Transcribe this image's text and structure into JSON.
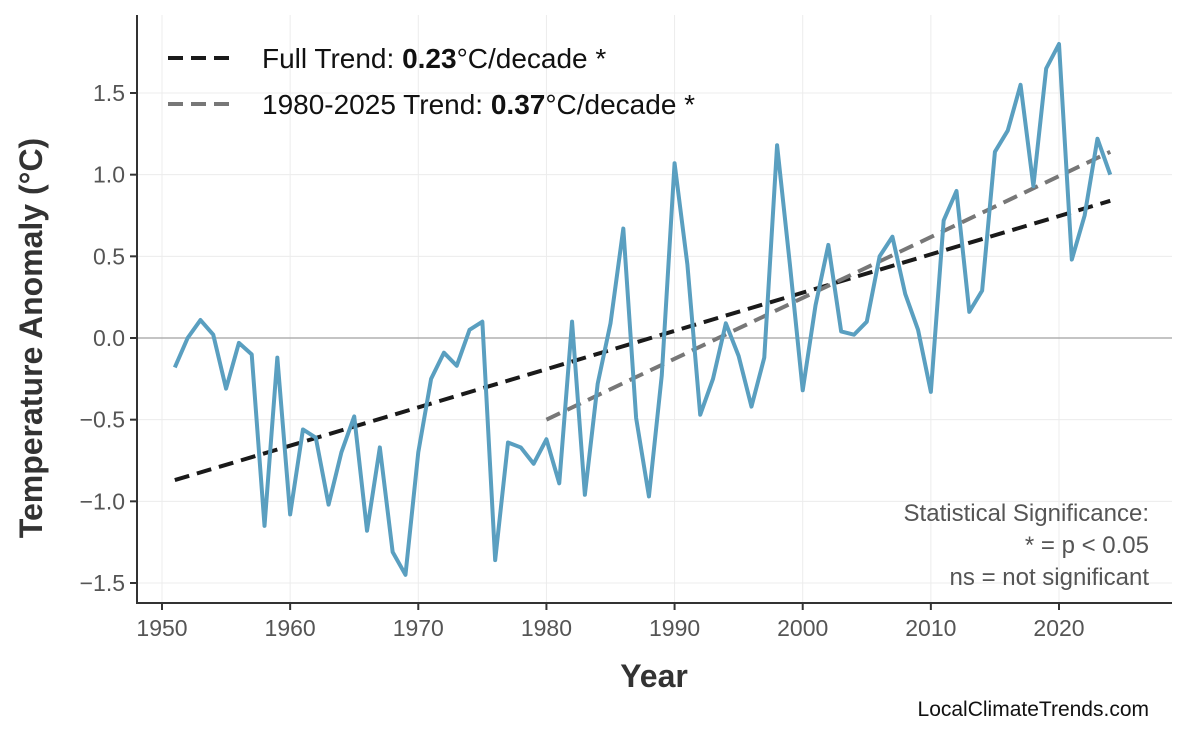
{
  "chart_data": {
    "type": "line",
    "xlabel": "Year",
    "ylabel": "Temperature Anomaly (°C)",
    "xlim": [
      1948,
      2029
    ],
    "ylim": [
      -1.62,
      1.98
    ],
    "x_ticks": [
      1950,
      1960,
      1970,
      1980,
      1990,
      2000,
      2010,
      2020
    ],
    "y_ticks": [
      -1.5,
      -1.0,
      -0.5,
      0.0,
      0.5,
      1.0,
      1.5
    ],
    "y_tick_labels": [
      "−1.5",
      "−1.0",
      "−0.5",
      "0.0",
      "0.5",
      "1.0",
      "1.5"
    ],
    "grid": true,
    "legend_position": "top-left",
    "colors": {
      "series": "#5a9fc0",
      "full_trend": "#1a1a1a",
      "recent_trend": "#777777",
      "zero_line": "#b0b0b0"
    },
    "x": [
      1951,
      1952,
      1953,
      1954,
      1955,
      1956,
      1957,
      1958,
      1959,
      1960,
      1961,
      1962,
      1963,
      1964,
      1965,
      1966,
      1967,
      1968,
      1969,
      1970,
      1971,
      1972,
      1973,
      1974,
      1975,
      1976,
      1977,
      1978,
      1979,
      1980,
      1981,
      1982,
      1983,
      1984,
      1985,
      1986,
      1987,
      1988,
      1989,
      1990,
      1991,
      1992,
      1993,
      1994,
      1995,
      1996,
      1997,
      1998,
      1999,
      2000,
      2001,
      2002,
      2003,
      2004,
      2005,
      2006,
      2007,
      2008,
      2009,
      2010,
      2011,
      2012,
      2013,
      2014,
      2015,
      2016,
      2017,
      2018,
      2019,
      2020,
      2021,
      2022,
      2023,
      2024
    ],
    "values": [
      -0.18,
      0.0,
      0.11,
      0.02,
      -0.31,
      -0.03,
      -0.1,
      -1.15,
      -0.12,
      -1.08,
      -0.56,
      -0.61,
      -1.02,
      -0.7,
      -0.48,
      -1.18,
      -0.67,
      -1.31,
      -1.45,
      -0.7,
      -0.25,
      -0.09,
      -0.17,
      0.05,
      0.1,
      -1.36,
      -0.64,
      -0.67,
      -0.77,
      -0.62,
      -0.89,
      0.1,
      -0.96,
      -0.28,
      0.09,
      0.67,
      -0.49,
      -0.97,
      -0.23,
      1.07,
      0.45,
      -0.47,
      -0.25,
      0.09,
      -0.11,
      -0.42,
      -0.12,
      1.18,
      0.45,
      -0.32,
      0.2,
      0.57,
      0.04,
      0.02,
      0.1,
      0.5,
      0.62,
      0.27,
      0.05,
      -0.33,
      0.72,
      0.9,
      0.16,
      0.29,
      1.14,
      1.27,
      1.55,
      0.93,
      1.65,
      1.8,
      0.48,
      0.75,
      1.22,
      1.0
    ],
    "trends": [
      {
        "label_prefix": "Full Trend: ",
        "rate": "0.23",
        "label_suffix": "°C/decade *",
        "x": [
          1951,
          2024
        ],
        "y": [
          -0.87,
          0.84
        ]
      },
      {
        "label_prefix": "1980-2025 Trend: ",
        "rate": "0.37",
        "label_suffix": "°C/decade *",
        "x": [
          1980,
          2024
        ],
        "y": [
          -0.5,
          1.14
        ]
      }
    ],
    "annotation": [
      "Statistical Significance:",
      "* = p < 0.05",
      "ns = not significant"
    ]
  },
  "credit": "LocalClimateTrends.com"
}
